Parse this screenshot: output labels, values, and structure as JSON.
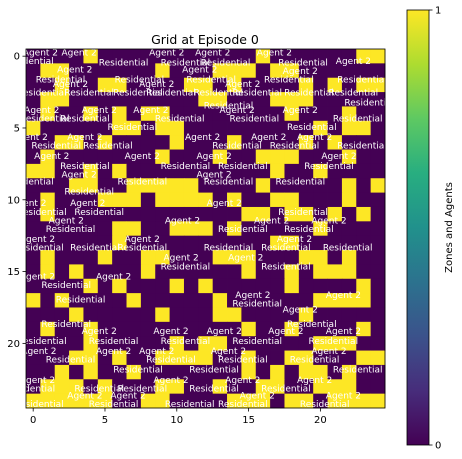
{
  "chart_data": {
    "type": "heatmap",
    "title": "Grid at Episode 0",
    "xlabel": "",
    "ylabel": "",
    "rows": 25,
    "cols": 25,
    "xticks": [
      0,
      5,
      10,
      15,
      20
    ],
    "yticks": [
      0,
      5,
      10,
      15,
      20
    ],
    "xlim": [
      -0.5,
      24.5
    ],
    "ylim": [
      24.5,
      -0.5
    ],
    "colormap": "viridis",
    "color_low": "#440154",
    "color_high": "#fde725",
    "values": [
      "0000100000000000100000011",
      "0110000001000111011000000",
      "0010011000011010000101011",
      "0110000000001100011100000",
      "0100101011000000001000100",
      "1000001101100000000010110",
      "0011010000100010000101000",
      "0100000001000100111000100",
      "1100101000000000010010000",
      "0001100111110000100000101",
      "0100011101111010011000100",
      "0100000000000001101101010",
      "0000001100111010000010000",
      "0000001000000000011000000",
      "0100010011000111000110100",
      "0101000010000001001011100",
      "0000101000101000001000010",
      "1010000100000100000011110",
      "0001000001000110000100000",
      "0100100000000001001000010",
      "0000100000101100000011100",
      "0001101001111001001100011",
      "0010100100000001010110100",
      "0111010001100100110011100",
      "1111110011000011101101111"
    ],
    "colorbar": {
      "label": "Zones and Agents",
      "ticks": [
        0,
        1
      ],
      "tick_labels": [
        "0",
        "1"
      ],
      "range": [
        0,
        1
      ]
    },
    "annotations": [
      {
        "text": "Agent 2",
        "x": 0.5,
        "y": -0.3
      },
      {
        "text": "Agent 2",
        "x": 3.2,
        "y": -0.3
      },
      {
        "text": "Agent 2",
        "x": 9.3,
        "y": -0.3
      },
      {
        "text": "Agent 2",
        "x": 12.5,
        "y": -0.3
      },
      {
        "text": "Agent 2",
        "x": 16.8,
        "y": -0.3
      },
      {
        "text": "Agent 2",
        "x": 22.3,
        "y": 0.3
      },
      {
        "text": "Residential",
        "x": -0.3,
        "y": 0.3
      },
      {
        "text": "Residential",
        "x": 6.3,
        "y": 0.4
      },
      {
        "text": "Residential",
        "x": 10.6,
        "y": 0.4
      },
      {
        "text": "Residential",
        "x": 13.4,
        "y": 0.4
      },
      {
        "text": "Residential",
        "x": 18.8,
        "y": 0.4
      },
      {
        "text": "Agent 2",
        "x": 2.9,
        "y": 0.9
      },
      {
        "text": "Agent 2",
        "x": 11.6,
        "y": 0.9
      },
      {
        "text": "Agent 2",
        "x": 18.6,
        "y": 1.0
      },
      {
        "text": "Residential",
        "x": 1.9,
        "y": 1.6
      },
      {
        "text": "Residential",
        "x": 7.4,
        "y": 1.6
      },
      {
        "text": "Residential",
        "x": 12.4,
        "y": 1.6
      },
      {
        "text": "Residential",
        "x": 17.8,
        "y": 1.6
      },
      {
        "text": "Residential",
        "x": 22.9,
        "y": 1.6
      },
      {
        "text": "Agent 2",
        "x": 2.6,
        "y": 1.9
      },
      {
        "text": "Agent 2",
        "x": 8.6,
        "y": 1.9
      },
      {
        "text": "Agent 2",
        "x": 14.6,
        "y": 1.9
      },
      {
        "text": "Residential",
        "x": 0.6,
        "y": 2.5
      },
      {
        "text": "Residential",
        "x": 3.9,
        "y": 2.5
      },
      {
        "text": "Residential",
        "x": 7.3,
        "y": 2.5
      },
      {
        "text": "Residential",
        "x": 9.6,
        "y": 2.5
      },
      {
        "text": "Residential",
        "x": 12.9,
        "y": 2.5
      },
      {
        "text": "Residential",
        "x": 15.6,
        "y": 2.5
      },
      {
        "text": "Residential",
        "x": 19.2,
        "y": 2.5
      },
      {
        "text": "Residential",
        "x": 22.3,
        "y": 2.5
      },
      {
        "text": "Agent 2",
        "x": 0.6,
        "y": 3.7
      },
      {
        "text": "Agent 2",
        "x": 4.6,
        "y": 3.7
      },
      {
        "text": "Agent 2",
        "x": 8.2,
        "y": 3.7
      },
      {
        "text": "Agent 2",
        "x": 14.2,
        "y": 3.7
      },
      {
        "text": "Agent 2",
        "x": 18.6,
        "y": 3.7
      },
      {
        "text": "Residential",
        "x": 13.6,
        "y": 3.4
      },
      {
        "text": "Residential",
        "x": 0.8,
        "y": 4.3
      },
      {
        "text": "Residential",
        "x": 3.6,
        "y": 4.3
      },
      {
        "text": "Residential",
        "x": 10.2,
        "y": 4.3
      },
      {
        "text": "Residential",
        "x": 15.4,
        "y": 4.3
      },
      {
        "text": "Residential",
        "x": 22.6,
        "y": 4.3
      },
      {
        "text": "Residential",
        "x": 23.4,
        "y": 3.2
      },
      {
        "text": "Agent 2",
        "x": -0.2,
        "y": 5.6
      },
      {
        "text": "Agent 2",
        "x": 3.6,
        "y": 5.6
      },
      {
        "text": "Agent 2",
        "x": 11.8,
        "y": 5.6
      },
      {
        "text": "Agent 2",
        "x": 16.4,
        "y": 5.6
      },
      {
        "text": "Agent 2",
        "x": 19.6,
        "y": 5.6
      },
      {
        "text": "Residential",
        "x": 6.9,
        "y": 4.9
      },
      {
        "text": "Residential",
        "x": 19.4,
        "y": 4.9
      },
      {
        "text": "Residential",
        "x": 1.6,
        "y": 6.2
      },
      {
        "text": "Residential",
        "x": 5.2,
        "y": 6.2
      },
      {
        "text": "Residential",
        "x": 14.2,
        "y": 6.2
      },
      {
        "text": "Residential",
        "x": 18.2,
        "y": 6.2
      },
      {
        "text": "Residential",
        "x": 22.9,
        "y": 6.2
      },
      {
        "text": "Agent 2",
        "x": 1.3,
        "y": 6.9
      },
      {
        "text": "Agent 2",
        "x": 7.6,
        "y": 6.9
      },
      {
        "text": "Agent 2",
        "x": 12.6,
        "y": 6.9
      },
      {
        "text": "Agent 2",
        "x": 21.3,
        "y": 6.9
      },
      {
        "text": "Residential",
        "x": 3.6,
        "y": 7.6
      },
      {
        "text": "Residential",
        "x": 10.6,
        "y": 7.6
      },
      {
        "text": "Residential",
        "x": 14.6,
        "y": 7.6
      },
      {
        "text": "Residential",
        "x": 20.6,
        "y": 7.6
      },
      {
        "text": "Agent 2",
        "x": 3.2,
        "y": 8.2
      },
      {
        "text": "Agent 2",
        "x": 12.6,
        "y": 8.2
      },
      {
        "text": "Residential",
        "x": -0.3,
        "y": 8.7
      },
      {
        "text": "Residential",
        "x": 7.6,
        "y": 8.7
      },
      {
        "text": "Residential",
        "x": 13.6,
        "y": 8.7
      },
      {
        "text": "Residential",
        "x": 18.6,
        "y": 8.7
      },
      {
        "text": "Residential",
        "x": 3.9,
        "y": 9.4
      },
      {
        "text": "Agent 2",
        "x": -0.3,
        "y": 10.2
      },
      {
        "text": "Agent 2",
        "x": 3.8,
        "y": 10.2
      },
      {
        "text": "Agent 2",
        "x": 13.3,
        "y": 10.2
      },
      {
        "text": "Residential",
        "x": 0.6,
        "y": 10.8
      },
      {
        "text": "Residential",
        "x": 4.6,
        "y": 10.8
      },
      {
        "text": "Residential",
        "x": 18.8,
        "y": 10.8
      },
      {
        "text": "Agent 2",
        "x": 2.3,
        "y": 11.4
      },
      {
        "text": "Agent 2",
        "x": 10.4,
        "y": 11.4
      },
      {
        "text": "Agent 2",
        "x": 16.6,
        "y": 11.4
      },
      {
        "text": "Agent 2",
        "x": 20.6,
        "y": 11.4
      },
      {
        "text": "Residential",
        "x": 2.6,
        "y": 12.0
      },
      {
        "text": "Residential",
        "x": 14.6,
        "y": 12.0
      },
      {
        "text": "Residential",
        "x": 19.2,
        "y": 12.0
      },
      {
        "text": "Agent 2",
        "x": 0.3,
        "y": 12.7
      },
      {
        "text": "Agent 2",
        "x": 7.6,
        "y": 12.7
      },
      {
        "text": "Agent 2",
        "x": 18.2,
        "y": 12.7
      },
      {
        "text": "Residential",
        "x": 0.4,
        "y": 13.3
      },
      {
        "text": "Residential",
        "x": 4.3,
        "y": 13.3
      },
      {
        "text": "Residential",
        "x": 7.6,
        "y": 13.3
      },
      {
        "text": "Residential",
        "x": 13.6,
        "y": 13.3
      },
      {
        "text": "Residential",
        "x": 17.6,
        "y": 13.3
      },
      {
        "text": "Residential",
        "x": 21.9,
        "y": 13.3
      },
      {
        "text": "Agent 2",
        "x": 10.3,
        "y": 14.0
      },
      {
        "text": "Agent 2",
        "x": 14.8,
        "y": 14.0
      },
      {
        "text": "Residential",
        "x": 10.6,
        "y": 14.6
      },
      {
        "text": "Residential",
        "x": 17.6,
        "y": 14.6
      },
      {
        "text": "Agent 2",
        "x": 0.3,
        "y": 15.3
      },
      {
        "text": "Agent 2",
        "x": 5.6,
        "y": 15.3
      },
      {
        "text": "Residential",
        "x": 2.3,
        "y": 15.9
      },
      {
        "text": "Agent 2",
        "x": 15.3,
        "y": 16.6
      },
      {
        "text": "Agent 2",
        "x": 21.6,
        "y": 16.6
      },
      {
        "text": "Residential",
        "x": 3.3,
        "y": 16.9
      },
      {
        "text": "Residential",
        "x": 15.6,
        "y": 17.2
      },
      {
        "text": "Agent 2",
        "x": 18.6,
        "y": 17.6
      },
      {
        "text": "Residential",
        "x": 2.3,
        "y": 18.6
      },
      {
        "text": "Residential",
        "x": 19.4,
        "y": 18.6
      },
      {
        "text": "Agent 2",
        "x": 4.6,
        "y": 19.1
      },
      {
        "text": "Agent 2",
        "x": 9.6,
        "y": 19.1
      },
      {
        "text": "Agent 2",
        "x": 13.3,
        "y": 19.1
      },
      {
        "text": "Agent 2",
        "x": 17.6,
        "y": 19.1
      },
      {
        "text": "Agent 2",
        "x": 21.6,
        "y": 19.1
      },
      {
        "text": "Residential",
        "x": 0.6,
        "y": 19.8
      },
      {
        "text": "Residential",
        "x": 5.6,
        "y": 19.8
      },
      {
        "text": "Residential",
        "x": 10.6,
        "y": 19.8
      },
      {
        "text": "Residential",
        "x": 15.6,
        "y": 19.8
      },
      {
        "text": "Residential",
        "x": 20.9,
        "y": 19.8
      },
      {
        "text": "Agent 2",
        "x": 0.4,
        "y": 20.5
      },
      {
        "text": "Agent 2",
        "x": 5.6,
        "y": 20.5
      },
      {
        "text": "Agent 2",
        "x": 8.6,
        "y": 20.5
      },
      {
        "text": "Agent 2",
        "x": 13.6,
        "y": 20.5
      },
      {
        "text": "Agent 2",
        "x": 20.6,
        "y": 20.5
      },
      {
        "text": "Residential",
        "x": 2.6,
        "y": 21.1
      },
      {
        "text": "Residential",
        "x": 9.6,
        "y": 21.1
      },
      {
        "text": "Residential",
        "x": 14.6,
        "y": 21.1
      },
      {
        "text": "Residential",
        "x": 19.6,
        "y": 21.1
      },
      {
        "text": "Residential",
        "x": 7.3,
        "y": 21.8
      },
      {
        "text": "Residential",
        "x": 12.6,
        "y": 21.8
      },
      {
        "text": "Residential",
        "x": 22.6,
        "y": 21.8
      },
      {
        "text": "Agent 2",
        "x": 0.3,
        "y": 22.5
      },
      {
        "text": "Agent 2",
        "x": 9.6,
        "y": 22.5
      },
      {
        "text": "Agent 2",
        "x": 14.6,
        "y": 22.5
      },
      {
        "text": "Agent 2",
        "x": 19.6,
        "y": 22.5
      },
      {
        "text": "Residential",
        "x": -0.2,
        "y": 23.1
      },
      {
        "text": "Residential",
        "x": 4.6,
        "y": 23.1
      },
      {
        "text": "Residential",
        "x": 7.6,
        "y": 23.1
      },
      {
        "text": "Residential",
        "x": 12.6,
        "y": 23.1
      },
      {
        "text": "Residential",
        "x": 17.6,
        "y": 23.1
      },
      {
        "text": "Agent 2",
        "x": 3.6,
        "y": 23.6
      },
      {
        "text": "Agent 2",
        "x": 6.6,
        "y": 23.6
      },
      {
        "text": "Agent 2",
        "x": 15.6,
        "y": 23.6
      },
      {
        "text": "Agent 2",
        "x": 21.6,
        "y": 23.6
      },
      {
        "text": "Residential",
        "x": 0.4,
        "y": 24.2
      },
      {
        "text": "Residential",
        "x": 5.6,
        "y": 24.2
      },
      {
        "text": "Residential",
        "x": 10.9,
        "y": 24.2
      },
      {
        "text": "Residential",
        "x": 14.6,
        "y": 24.2
      },
      {
        "text": "Residential",
        "x": 20.3,
        "y": 24.2
      }
    ]
  }
}
